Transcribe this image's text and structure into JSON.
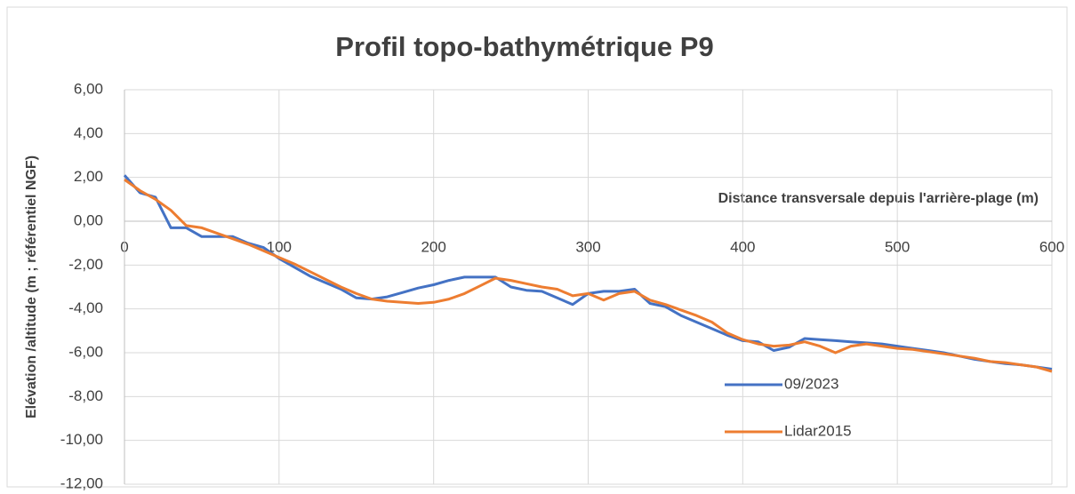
{
  "chart_data": {
    "type": "line",
    "title": "Profil topo-bathymétrique P9",
    "x_label": "Distance transversale depuis l'arrière-plage (m)",
    "y_label": "Elévation /altitude (m ; référentiel NGF)",
    "x": [
      0,
      10,
      20,
      30,
      40,
      50,
      60,
      70,
      80,
      90,
      100,
      110,
      120,
      130,
      140,
      150,
      160,
      170,
      180,
      190,
      200,
      210,
      220,
      230,
      240,
      250,
      260,
      270,
      280,
      290,
      300,
      310,
      320,
      330,
      340,
      350,
      360,
      370,
      380,
      390,
      400,
      410,
      420,
      430,
      440,
      450,
      460,
      470,
      480,
      490,
      500,
      510,
      520,
      530,
      540,
      550,
      560,
      570,
      580,
      590,
      600
    ],
    "series": [
      {
        "name": "09/2023",
        "color": "#4472c4",
        "values": [
          2.1,
          1.3,
          1.1,
          -0.3,
          -0.3,
          -0.7,
          -0.7,
          -0.7,
          -1.0,
          -1.2,
          -1.7,
          -2.1,
          -2.5,
          -2.8,
          -3.1,
          -3.5,
          -3.55,
          -3.45,
          -3.25,
          -3.05,
          -2.9,
          -2.7,
          -2.55,
          -2.55,
          -2.55,
          -3.0,
          -3.15,
          -3.2,
          -3.5,
          -3.8,
          -3.3,
          -3.2,
          -3.2,
          -3.1,
          -3.75,
          -3.9,
          -4.3,
          -4.6,
          -4.9,
          -5.2,
          -5.45,
          -5.5,
          -5.9,
          -5.75,
          -5.35,
          -5.4,
          -5.45,
          -5.5,
          -5.55,
          -5.6,
          -5.7,
          -5.8,
          -5.9,
          -6.0,
          -6.15,
          -6.3,
          -6.4,
          -6.5,
          -6.55,
          -6.65,
          -6.75
        ]
      },
      {
        "name": "Lidar2015",
        "color": "#ed7d31",
        "values": [
          1.9,
          1.4,
          1.0,
          0.5,
          -0.2,
          -0.3,
          -0.55,
          -0.8,
          -1.05,
          -1.35,
          -1.65,
          -1.95,
          -2.3,
          -2.65,
          -3.0,
          -3.3,
          -3.55,
          -3.65,
          -3.7,
          -3.75,
          -3.7,
          -3.55,
          -3.3,
          -2.95,
          -2.6,
          -2.7,
          -2.85,
          -3.0,
          -3.1,
          -3.4,
          -3.3,
          -3.6,
          -3.3,
          -3.2,
          -3.6,
          -3.8,
          -4.05,
          -4.3,
          -4.6,
          -5.1,
          -5.4,
          -5.6,
          -5.7,
          -5.65,
          -5.5,
          -5.7,
          -6.0,
          -5.7,
          -5.6,
          -5.7,
          -5.8,
          -5.85,
          -5.95,
          -6.05,
          -6.15,
          -6.25,
          -6.4,
          -6.45,
          -6.55,
          -6.65,
          -6.85
        ]
      }
    ],
    "xlim": [
      0,
      600
    ],
    "xticks": [
      0,
      100,
      200,
      300,
      400,
      500,
      600
    ],
    "ylim": [
      -12,
      6
    ],
    "yticks": [
      {
        "value": -12,
        "label": "-12,00"
      },
      {
        "value": -10,
        "label": "-10,00"
      },
      {
        "value": -8,
        "label": "-8,00"
      },
      {
        "value": -6,
        "label": "-6,00"
      },
      {
        "value": -4,
        "label": "-4,00"
      },
      {
        "value": -2,
        "label": "-2,00"
      },
      {
        "value": 0,
        "label": "0,00"
      },
      {
        "value": 2,
        "label": "2,00"
      },
      {
        "value": 4,
        "label": "4,00"
      },
      {
        "value": 6,
        "label": "6,00"
      }
    ],
    "grid": true
  }
}
